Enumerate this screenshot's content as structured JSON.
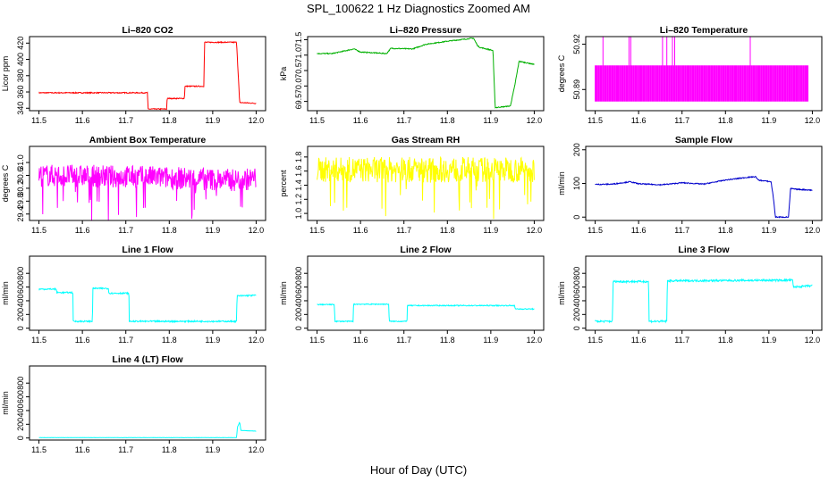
{
  "figure": {
    "title": "SPL_100622  1 Hz Diagnostics Zoomed AM",
    "xlabel": "Hour of Day (UTC)"
  },
  "chart_data": [
    {
      "type": "line",
      "key": "co2",
      "title": "Li–820 CO2",
      "ylabel": "Licor ppm",
      "color": "#ff0000",
      "xlim": [
        11.5,
        12.0
      ],
      "xticks": [
        "11.5",
        "11.6",
        "11.7",
        "11.8",
        "11.9",
        "12.0"
      ],
      "ylim": [
        337,
        428
      ],
      "yticks": [
        340,
        360,
        380,
        400,
        420
      ],
      "series": [
        {
          "name": "CO2",
          "x": [
            11.5,
            11.75,
            11.751,
            11.794,
            11.795,
            11.835,
            11.836,
            11.88,
            11.881,
            11.955,
            11.962,
            12.0
          ],
          "y": [
            359,
            359,
            339,
            339,
            352,
            352,
            367,
            367,
            421,
            421,
            347,
            346
          ]
        }
      ],
      "noise": 0.6
    },
    {
      "type": "line",
      "key": "pressure",
      "title": "Li–820 Pressure",
      "ylabel": "kPa",
      "color": "#00b000",
      "xlim": [
        11.5,
        12.0
      ],
      "xticks": [
        "11.5",
        "11.6",
        "11.7",
        "11.8",
        "11.9",
        "12.0"
      ],
      "ylim": [
        69.2,
        71.6
      ],
      "yticks": [
        69.5,
        70.0,
        70.5,
        71.0,
        71.5
      ],
      "series": [
        {
          "name": "Pressure",
          "x": [
            11.5,
            11.535,
            11.585,
            11.6,
            11.66,
            11.67,
            11.72,
            11.75,
            11.8,
            11.83,
            11.86,
            11.87,
            11.875,
            11.905,
            11.91,
            11.945,
            11.955,
            11.965,
            12.0
          ],
          "y": [
            71.05,
            71.05,
            71.2,
            71.1,
            71.05,
            71.22,
            71.2,
            71.35,
            71.45,
            71.5,
            71.55,
            71.3,
            71.25,
            71.15,
            69.3,
            69.35,
            70.0,
            70.8,
            70.7
          ]
        }
      ],
      "noise": 0.015
    },
    {
      "type": "spikes",
      "key": "licor_temp",
      "title": "Li–820 Temperature",
      "ylabel": "degrees C",
      "color": "#ff00ff",
      "xlim": [
        11.5,
        12.0
      ],
      "xticks": [
        "11.5",
        "11.6",
        "11.7",
        "11.8",
        "11.9",
        "12.0"
      ],
      "ylim": [
        50.876,
        50.925
      ],
      "yticks": [
        50.89,
        50.92
      ],
      "low": 50.882,
      "high": 50.906,
      "spike": 50.925,
      "range": [
        11.5,
        11.99
      ]
    },
    {
      "type": "line",
      "key": "ambient_temp",
      "title": "Ambient Box Temperature",
      "ylabel": "degrees C",
      "color": "#ff00ff",
      "xlim": [
        11.5,
        12.0
      ],
      "xticks": [
        "11.5",
        "11.6",
        "11.7",
        "11.8",
        "11.9",
        "12.0"
      ],
      "ylim": [
        29.2,
        31.5
      ],
      "yticks": [
        29.4,
        29.8,
        30.2,
        30.6,
        31.0
      ],
      "series": [
        {
          "name": "Ambient",
          "x": [
            11.5,
            11.75,
            11.85,
            11.95,
            12.0
          ],
          "y": [
            30.6,
            30.55,
            30.5,
            30.45,
            30.5
          ]
        }
      ],
      "noise": 0.35,
      "dips": true
    },
    {
      "type": "line",
      "key": "rh",
      "title": "Gas Stream RH",
      "ylabel": "percent",
      "color": "#ffff00",
      "xlim": [
        11.5,
        12.0
      ],
      "xticks": [
        "11.5",
        "11.6",
        "11.7",
        "11.8",
        "11.9",
        "12.0"
      ],
      "ylim": [
        0.9,
        1.95
      ],
      "yticks": [
        1.0,
        1.2,
        1.4,
        1.6,
        1.8
      ],
      "series": [
        {
          "name": "RH",
          "x": [
            11.5,
            12.0
          ],
          "y": [
            1.62,
            1.62
          ]
        }
      ],
      "noise": 0.18,
      "dips": true
    },
    {
      "type": "line",
      "key": "sample_flow",
      "title": "Sample Flow",
      "ylabel": "ml/min",
      "color": "#0000cc",
      "xlim": [
        11.5,
        12.0
      ],
      "xticks": [
        "11.5",
        "11.6",
        "11.7",
        "11.8",
        "11.9",
        "12.0"
      ],
      "ylim": [
        -10,
        210
      ],
      "yticks": [
        0,
        100,
        200
      ],
      "series": [
        {
          "name": "Sample",
          "x": [
            11.5,
            11.54,
            11.58,
            11.6,
            11.65,
            11.67,
            11.7,
            11.75,
            11.8,
            11.85,
            11.87,
            11.875,
            11.905,
            11.91,
            11.915,
            11.945,
            11.95,
            11.96,
            12.0
          ],
          "y": [
            97,
            98,
            105,
            99,
            96,
            98,
            102,
            98,
            110,
            118,
            120,
            110,
            105,
            60,
            0,
            0,
            85,
            83,
            80
          ]
        }
      ],
      "noise": 1.5
    },
    {
      "type": "line",
      "key": "line1",
      "title": "Line 1 Flow",
      "ylabel": "ml/min",
      "color": "#00ffff",
      "xlim": [
        11.5,
        12.0
      ],
      "xticks": [
        "11.5",
        "11.6",
        "11.7",
        "11.8",
        "11.9",
        "12.0"
      ],
      "ylim": [
        -30,
        1050
      ],
      "yticks": [
        0,
        200,
        400,
        600,
        800
      ],
      "series": [
        {
          "name": "Line1",
          "x": [
            11.5,
            11.54,
            11.541,
            11.578,
            11.579,
            11.623,
            11.624,
            11.66,
            11.661,
            11.707,
            11.708,
            11.955,
            11.956,
            12.0
          ],
          "y": [
            570,
            570,
            520,
            520,
            100,
            100,
            580,
            580,
            510,
            510,
            100,
            100,
            470,
            480
          ]
        }
      ],
      "noise": 10
    },
    {
      "type": "line",
      "key": "line2",
      "title": "Line 2 Flow",
      "ylabel": "ml/min",
      "color": "#00ffff",
      "xlim": [
        11.5,
        12.0
      ],
      "xticks": [
        "11.5",
        "11.6",
        "11.7",
        "11.8",
        "11.9",
        "12.0"
      ],
      "ylim": [
        -30,
        1050
      ],
      "yticks": [
        0,
        200,
        400,
        600,
        800
      ],
      "series": [
        {
          "name": "Line2",
          "x": [
            11.5,
            11.54,
            11.541,
            11.583,
            11.584,
            11.665,
            11.666,
            11.707,
            11.708,
            11.955,
            11.956,
            12.0
          ],
          "y": [
            345,
            345,
            100,
            100,
            350,
            350,
            100,
            100,
            330,
            330,
            280,
            280
          ]
        }
      ],
      "noise": 7
    },
    {
      "type": "line",
      "key": "line3",
      "title": "Line 3 Flow",
      "ylabel": "ml/min",
      "color": "#00ffff",
      "xlim": [
        11.5,
        12.0
      ],
      "xticks": [
        "11.5",
        "11.6",
        "11.7",
        "11.8",
        "11.9",
        "12.0"
      ],
      "ylim": [
        -30,
        1050
      ],
      "yticks": [
        0,
        200,
        400,
        600,
        800
      ],
      "series": [
        {
          "name": "Line3",
          "x": [
            11.5,
            11.54,
            11.541,
            11.623,
            11.624,
            11.665,
            11.666,
            11.955,
            11.956,
            12.0
          ],
          "y": [
            100,
            100,
            680,
            680,
            100,
            100,
            690,
            700,
            600,
            620
          ]
        }
      ],
      "noise": 14
    },
    {
      "type": "line",
      "key": "line4",
      "title": "Line 4 (LT) Flow",
      "ylabel": "ml/min",
      "color": "#00ffff",
      "xlim": [
        11.5,
        12.0
      ],
      "xticks": [
        "11.5",
        "11.6",
        "11.7",
        "11.8",
        "11.9",
        "12.0"
      ],
      "ylim": [
        -30,
        1050
      ],
      "yticks": [
        0,
        200,
        400,
        600,
        800
      ],
      "series": [
        {
          "name": "Line4",
          "x": [
            11.5,
            11.955,
            11.957,
            11.962,
            11.965,
            12.0
          ],
          "y": [
            5,
            5,
            160,
            230,
            110,
            100
          ]
        }
      ],
      "noise": 2
    }
  ]
}
